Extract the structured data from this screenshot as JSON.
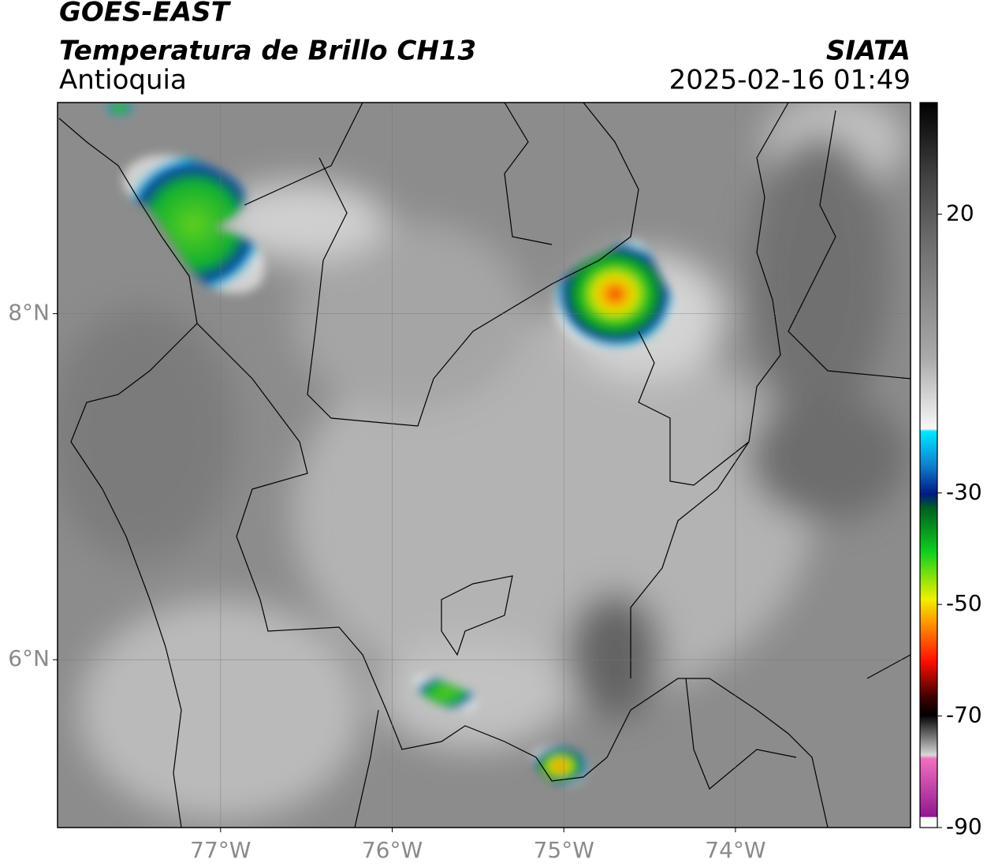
{
  "header": {
    "title": "GOES-EAST",
    "subtitle": "Temperatura de Brillo CH13",
    "region": "Antioquia",
    "source": "SIATA",
    "timestamp": "2025-02-16 01:49"
  },
  "map": {
    "xlim": [
      -77.95,
      -72.98
    ],
    "ylim": [
      5.03,
      9.22
    ],
    "xticks": [
      {
        "value": -77,
        "label": "77°W"
      },
      {
        "value": -76,
        "label": "76°W"
      },
      {
        "value": -75,
        "label": "75°W"
      },
      {
        "value": -74,
        "label": "74°W"
      }
    ],
    "yticks": [
      {
        "value": 6,
        "label": "6°N"
      },
      {
        "value": 8,
        "label": "8°N"
      }
    ],
    "grid": true
  },
  "colorbar": {
    "clim": [
      -90,
      40
    ],
    "ticks": [
      20,
      -30,
      -50,
      -70,
      -90
    ]
  }
}
